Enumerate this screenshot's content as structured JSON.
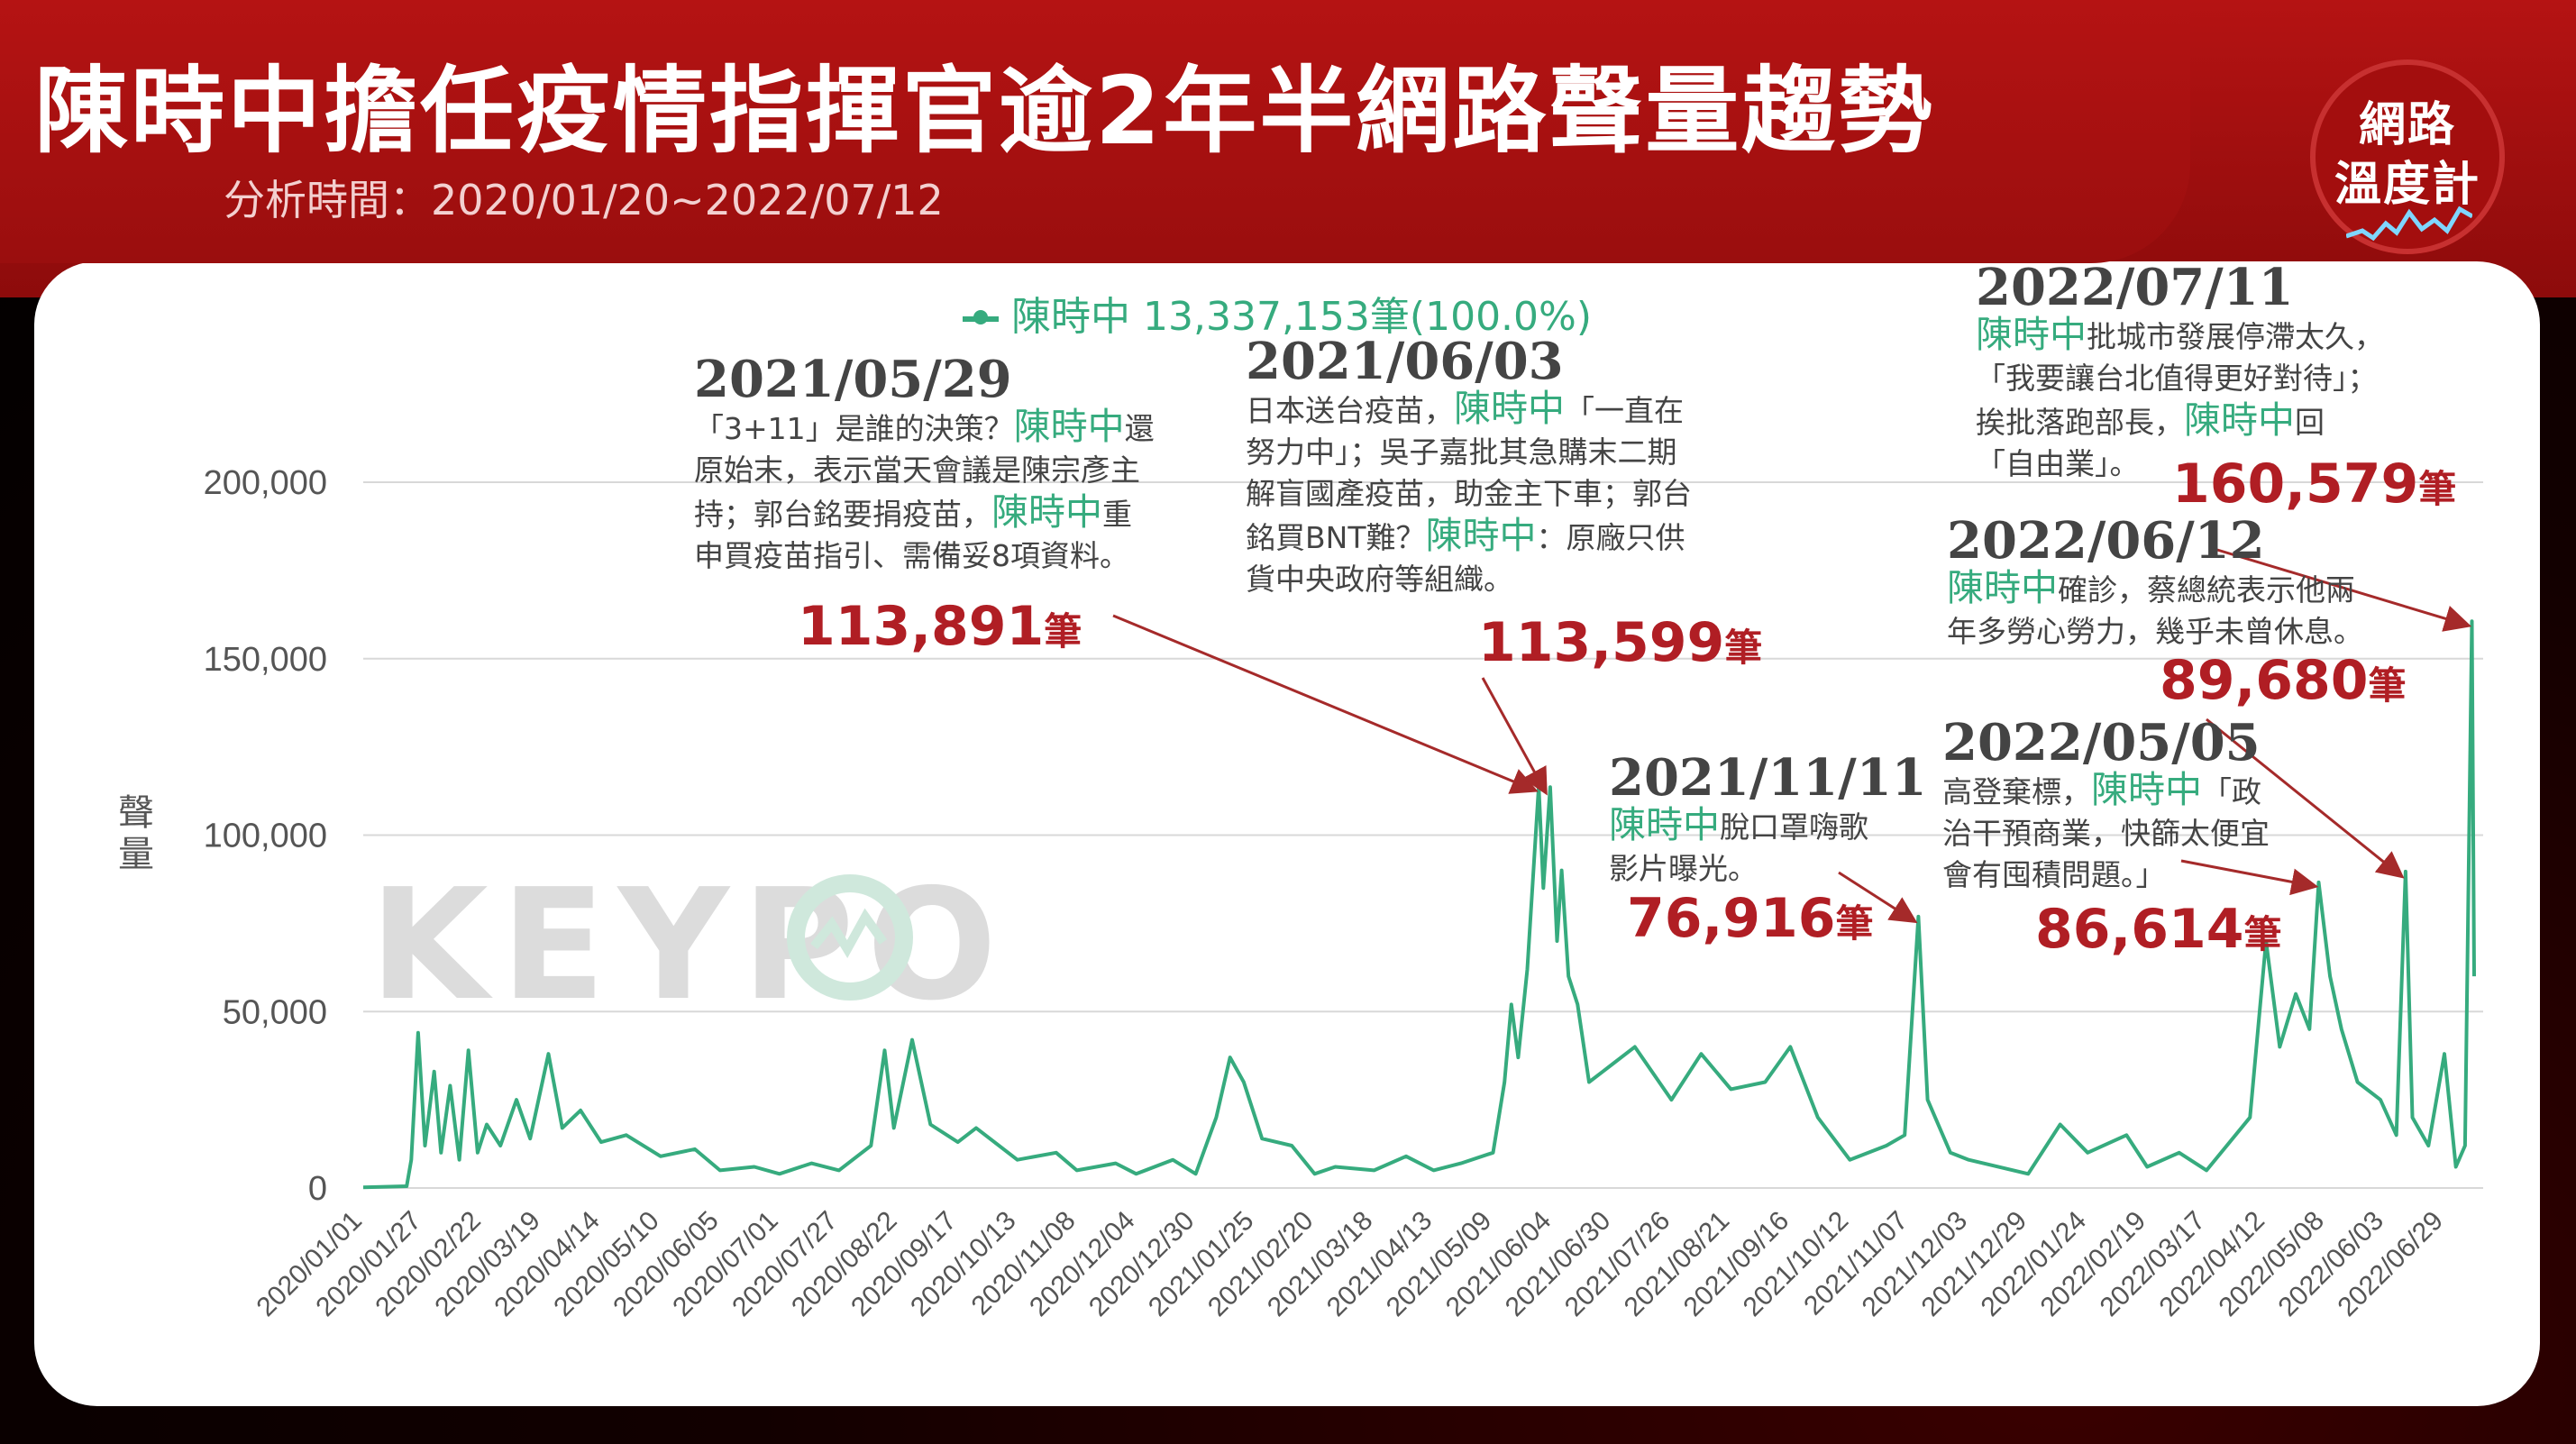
{
  "header": {
    "title": "陳時中擔任疫情指揮官逾2年半網路聲量趨勢",
    "subtitle": "分析時間：2020/01/20~2022/07/12"
  },
  "logo": {
    "line1": "網路",
    "line2": "溫度計"
  },
  "watermark": "KEYPO",
  "colors": {
    "series": "#36ab7e",
    "highlight_value": "#b01e24",
    "header": "#a31010",
    "arrow": "#a52a2a"
  },
  "chart_data": {
    "type": "line",
    "title": "",
    "xlabel": "",
    "ylabel": "聲量",
    "ylim": [
      0,
      200000
    ],
    "yticks": [
      0,
      50000,
      100000,
      150000,
      200000
    ],
    "ytick_labels": [
      "0",
      "50,000",
      "100,000",
      "150,000",
      "200,000"
    ],
    "grid": "horizontal",
    "legend": {
      "position": "top-center",
      "label": "陳時中 13,337,153筆(100.0%)"
    },
    "xtick_labels": [
      "2020/01/01",
      "2020/01/27",
      "2020/02/22",
      "2020/03/19",
      "2020/04/14",
      "2020/05/10",
      "2020/06/05",
      "2020/07/01",
      "2020/07/27",
      "2020/08/22",
      "2020/09/17",
      "2020/10/13",
      "2020/11/08",
      "2020/12/04",
      "2020/12/30",
      "2021/01/25",
      "2021/02/20",
      "2021/03/18",
      "2021/04/13",
      "2021/05/09",
      "2021/06/04",
      "2021/06/30",
      "2021/07/26",
      "2021/08/21",
      "2021/09/16",
      "2021/10/12",
      "2021/11/07",
      "2021/12/03",
      "2021/12/29",
      "2022/01/24",
      "2022/02/19",
      "2022/03/17",
      "2022/04/12",
      "2022/05/08",
      "2022/06/03",
      "2022/06/29"
    ],
    "series": [
      {
        "name": "陳時中",
        "points": [
          [
            "2020/01/01",
            200
          ],
          [
            "2020/01/20",
            500
          ],
          [
            "2020/01/22",
            8000
          ],
          [
            "2020/01/25",
            44000
          ],
          [
            "2020/01/28",
            12000
          ],
          [
            "2020/02/01",
            33000
          ],
          [
            "2020/02/04",
            10000
          ],
          [
            "2020/02/08",
            29000
          ],
          [
            "2020/02/12",
            8000
          ],
          [
            "2020/02/16",
            39000
          ],
          [
            "2020/02/20",
            10000
          ],
          [
            "2020/02/24",
            18000
          ],
          [
            "2020/03/01",
            12000
          ],
          [
            "2020/03/08",
            25000
          ],
          [
            "2020/03/14",
            14000
          ],
          [
            "2020/03/22",
            38000
          ],
          [
            "2020/03/28",
            17000
          ],
          [
            "2020/04/05",
            22000
          ],
          [
            "2020/04/14",
            13000
          ],
          [
            "2020/04/25",
            15000
          ],
          [
            "2020/05/10",
            9000
          ],
          [
            "2020/05/25",
            11000
          ],
          [
            "2020/06/05",
            5000
          ],
          [
            "2020/06/20",
            6000
          ],
          [
            "2020/07/01",
            4000
          ],
          [
            "2020/07/15",
            7000
          ],
          [
            "2020/07/27",
            5000
          ],
          [
            "2020/08/10",
            12000
          ],
          [
            "2020/08/16",
            39000
          ],
          [
            "2020/08/20",
            17000
          ],
          [
            "2020/08/28",
            42000
          ],
          [
            "2020/09/05",
            18000
          ],
          [
            "2020/09/17",
            13000
          ],
          [
            "2020/09/25",
            17000
          ],
          [
            "2020/10/13",
            8000
          ],
          [
            "2020/10/30",
            10000
          ],
          [
            "2020/11/08",
            5000
          ],
          [
            "2020/11/25",
            7000
          ],
          [
            "2020/12/04",
            4000
          ],
          [
            "2020/12/20",
            8000
          ],
          [
            "2020/12/30",
            4000
          ],
          [
            "2021/01/08",
            20000
          ],
          [
            "2021/01/14",
            37000
          ],
          [
            "2021/01/20",
            30000
          ],
          [
            "2021/01/28",
            14000
          ],
          [
            "2021/02/10",
            12000
          ],
          [
            "2021/02/20",
            4000
          ],
          [
            "2021/03/01",
            6000
          ],
          [
            "2021/03/18",
            5000
          ],
          [
            "2021/04/01",
            9000
          ],
          [
            "2021/04/13",
            5000
          ],
          [
            "2021/04/25",
            7000
          ],
          [
            "2021/05/09",
            10000
          ],
          [
            "2021/05/14",
            30000
          ],
          [
            "2021/05/17",
            52000
          ],
          [
            "2021/05/20",
            37000
          ],
          [
            "2021/05/24",
            62000
          ],
          [
            "2021/05/29",
            113891
          ],
          [
            "2021/05/31",
            85000
          ],
          [
            "2021/06/03",
            113599
          ],
          [
            "2021/06/06",
            70000
          ],
          [
            "2021/06/08",
            90000
          ],
          [
            "2021/06/11",
            60000
          ],
          [
            "2021/06/15",
            52000
          ],
          [
            "2021/06/20",
            30000
          ],
          [
            "2021/06/30",
            35000
          ],
          [
            "2021/07/10",
            40000
          ],
          [
            "2021/07/26",
            25000
          ],
          [
            "2021/08/08",
            38000
          ],
          [
            "2021/08/21",
            28000
          ],
          [
            "2021/09/05",
            30000
          ],
          [
            "2021/09/16",
            40000
          ],
          [
            "2021/09/28",
            20000
          ],
          [
            "2021/10/12",
            8000
          ],
          [
            "2021/10/28",
            12000
          ],
          [
            "2021/11/05",
            15000
          ],
          [
            "2021/11/11",
            76916
          ],
          [
            "2021/11/15",
            25000
          ],
          [
            "2021/11/25",
            10000
          ],
          [
            "2021/12/03",
            8000
          ],
          [
            "2021/12/29",
            4000
          ],
          [
            "2022/01/12",
            18000
          ],
          [
            "2022/01/24",
            10000
          ],
          [
            "2022/02/10",
            15000
          ],
          [
            "2022/02/19",
            6000
          ],
          [
            "2022/03/05",
            10000
          ],
          [
            "2022/03/17",
            5000
          ],
          [
            "2022/04/05",
            20000
          ],
          [
            "2022/04/12",
            70000
          ],
          [
            "2022/04/18",
            40000
          ],
          [
            "2022/04/25",
            55000
          ],
          [
            "2022/05/01",
            45000
          ],
          [
            "2022/05/05",
            86614
          ],
          [
            "2022/05/10",
            60000
          ],
          [
            "2022/05/15",
            45000
          ],
          [
            "2022/05/22",
            30000
          ],
          [
            "2022/06/01",
            25000
          ],
          [
            "2022/06/08",
            15000
          ],
          [
            "2022/06/12",
            89680
          ],
          [
            "2022/06/15",
            20000
          ],
          [
            "2022/06/22",
            12000
          ],
          [
            "2022/06/29",
            38000
          ],
          [
            "2022/07/04",
            6000
          ],
          [
            "2022/07/08",
            12000
          ],
          [
            "2022/07/11",
            160579
          ],
          [
            "2022/07/12",
            60000
          ]
        ]
      }
    ],
    "annotations": [
      {
        "date": "2021/05/29",
        "lines": [
          [
            {
              "t": "「3+11」是誰的決策？"
            },
            {
              "t": "陳時中",
              "hl": true
            },
            {
              "t": "還"
            }
          ],
          [
            {
              "t": "原始末，表示當天會議是陳宗彥主"
            }
          ],
          [
            {
              "t": "持；郭台銘要捐疫苗，"
            },
            {
              "t": "陳時中",
              "hl": true
            },
            {
              "t": "重"
            }
          ],
          [
            {
              "t": "申買疫苗指引、需備妥8項資料。"
            }
          ]
        ],
        "value": "113,891",
        "unit": "筆"
      },
      {
        "date": "2021/06/03",
        "lines": [
          [
            {
              "t": "日本送台疫苗，"
            },
            {
              "t": "陳時中",
              "hl": true
            },
            {
              "t": "「一直在"
            }
          ],
          [
            {
              "t": "努力中」；吳子嘉批其急購末二期"
            }
          ],
          [
            {
              "t": "解盲國產疫苗，助金主下車；郭台"
            }
          ],
          [
            {
              "t": "銘買BNT難？"
            },
            {
              "t": "陳時中",
              "hl": true
            },
            {
              "t": "：原廠只供"
            }
          ],
          [
            {
              "t": "貨中央政府等組織。"
            }
          ]
        ],
        "value": "113,599",
        "unit": "筆"
      },
      {
        "date": "2021/11/11",
        "lines": [
          [
            {
              "t": "陳時中",
              "hl": true
            },
            {
              "t": "脫口罩嗨歌"
            }
          ],
          [
            {
              "t": "影片曝光。"
            }
          ]
        ],
        "value": "76,916",
        "unit": "筆"
      },
      {
        "date": "2022/05/05",
        "lines": [
          [
            {
              "t": "高登棄標，"
            },
            {
              "t": "陳時中",
              "hl": true
            },
            {
              "t": "「政"
            }
          ],
          [
            {
              "t": "治干預商業，快篩太便宜"
            }
          ],
          [
            {
              "t": "會有囤積問題。」"
            }
          ]
        ],
        "value": "86,614",
        "unit": "筆"
      },
      {
        "date": "2022/06/12",
        "lines": [
          [
            {
              "t": "陳時中",
              "hl": true
            },
            {
              "t": "確診，蔡總統表示他兩"
            }
          ],
          [
            {
              "t": "年多勞心勞力，幾乎未曾休息。"
            }
          ]
        ],
        "value": "89,680",
        "unit": "筆"
      },
      {
        "date": "2022/07/11",
        "lines": [
          [
            {
              "t": "陳時中",
              "hl": true
            },
            {
              "t": "批城市發展停滯太久，"
            }
          ],
          [
            {
              "t": "「我要讓台北值得更好對待」；"
            }
          ],
          [
            {
              "t": "挨批落跑部長，"
            },
            {
              "t": "陳時中",
              "hl": true
            },
            {
              "t": "回"
            }
          ],
          [
            {
              "t": "「自由業」。"
            }
          ]
        ],
        "value": "160,579",
        "unit": "筆"
      }
    ]
  }
}
